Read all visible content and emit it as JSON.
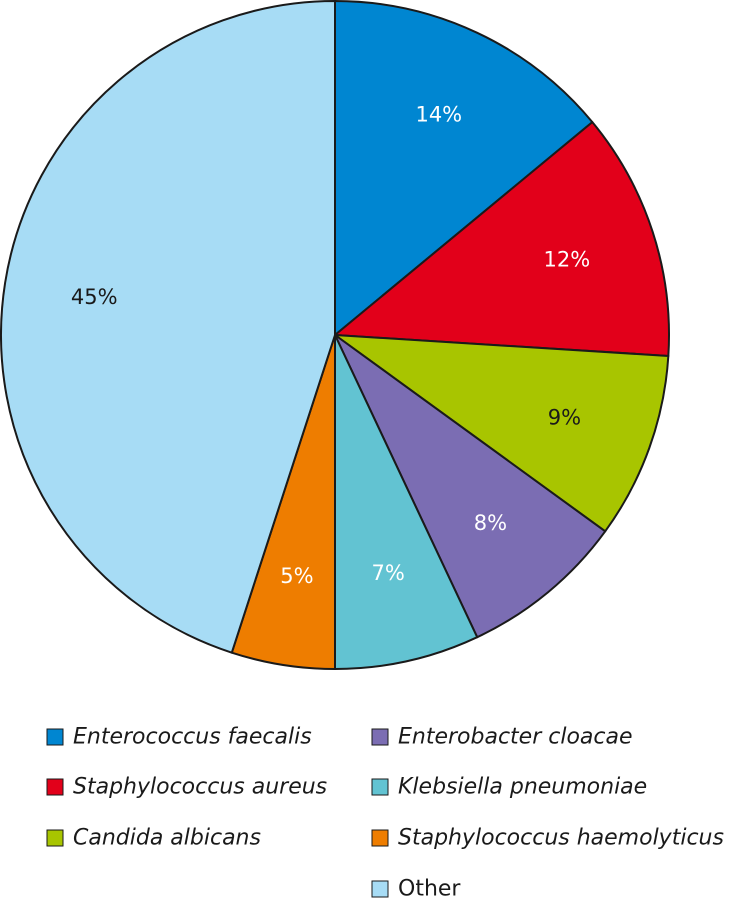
{
  "chart_data": {
    "type": "pie",
    "title": "",
    "slices": [
      {
        "label": "Enterococcus faecalis",
        "value": 14,
        "value_label": "14%",
        "color": "#0086d1",
        "label_color": "#ffffff",
        "italic": true
      },
      {
        "label": "Staphylococcus aureus",
        "value": 12,
        "value_label": "12%",
        "color": "#e2001a",
        "label_color": "#ffffff",
        "italic": true
      },
      {
        "label": "Candida albicans",
        "value": 9,
        "value_label": "9%",
        "color": "#a8c500",
        "label_color": "#1a1a1a",
        "italic": true
      },
      {
        "label": "Enterobacter cloacae",
        "value": 8,
        "value_label": "8%",
        "color": "#7b6db3",
        "label_color": "#ffffff",
        "italic": true
      },
      {
        "label": "Klebsiella pneumoniae",
        "value": 7,
        "value_label": "7%",
        "color": "#62c3d2",
        "label_color": "#ffffff",
        "italic": true
      },
      {
        "label": "Staphylococcus haemolyticus",
        "value": 5,
        "value_label": "5%",
        "color": "#ee7d00",
        "label_color": "#ffffff",
        "italic": true
      },
      {
        "label": "Other",
        "value": 45,
        "value_label": "45%",
        "color": "#a7dcf5",
        "label_color": "#1a1a1a",
        "italic": false
      }
    ],
    "start_angle": "12 o'clock",
    "direction": "clockwise",
    "legend": {
      "placement": "bottom",
      "columns": 2
    }
  }
}
